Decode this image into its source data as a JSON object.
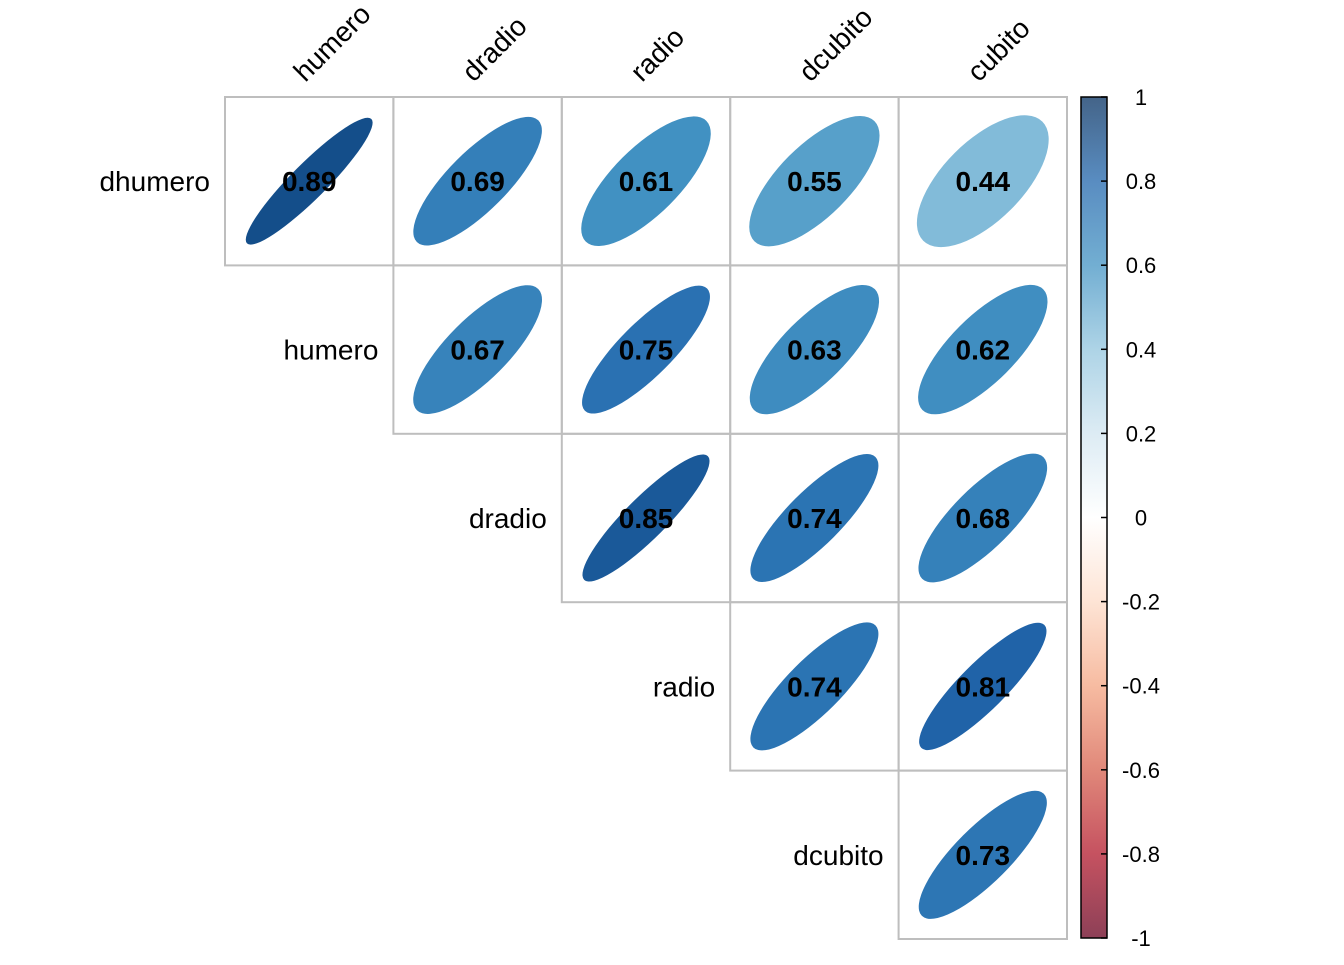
{
  "chart_data": {
    "type": "heatmap",
    "style": "correlation-ellipse-upper-triangle",
    "title": "",
    "column_labels": [
      "humero",
      "dradio",
      "radio",
      "dcubito",
      "cubito"
    ],
    "row_labels": [
      "dhumero",
      "humero",
      "dradio",
      "radio",
      "dcubito"
    ],
    "cells": [
      {
        "row": "dhumero",
        "col": "humero",
        "value": 0.89,
        "label": "0.89"
      },
      {
        "row": "dhumero",
        "col": "dradio",
        "value": 0.69,
        "label": "0.69"
      },
      {
        "row": "dhumero",
        "col": "radio",
        "value": 0.61,
        "label": "0.61"
      },
      {
        "row": "dhumero",
        "col": "dcubito",
        "value": 0.55,
        "label": "0.55"
      },
      {
        "row": "dhumero",
        "col": "cubito",
        "value": 0.44,
        "label": "0.44"
      },
      {
        "row": "humero",
        "col": "dradio",
        "value": 0.67,
        "label": "0.67"
      },
      {
        "row": "humero",
        "col": "radio",
        "value": 0.75,
        "label": "0.75"
      },
      {
        "row": "humero",
        "col": "dcubito",
        "value": 0.63,
        "label": "0.63"
      },
      {
        "row": "humero",
        "col": "cubito",
        "value": 0.62,
        "label": "0.62"
      },
      {
        "row": "dradio",
        "col": "radio",
        "value": 0.85,
        "label": "0.85"
      },
      {
        "row": "dradio",
        "col": "dcubito",
        "value": 0.74,
        "label": "0.74"
      },
      {
        "row": "dradio",
        "col": "cubito",
        "value": 0.68,
        "label": "0.68"
      },
      {
        "row": "radio",
        "col": "dcubito",
        "value": 0.74,
        "label": "0.74"
      },
      {
        "row": "radio",
        "col": "cubito",
        "value": 0.81,
        "label": "0.81"
      },
      {
        "row": "dcubito",
        "col": "cubito",
        "value": 0.73,
        "label": "0.73"
      }
    ],
    "colorbar": {
      "range": [
        -1,
        1
      ],
      "tick_values": [
        1,
        0.8,
        0.6,
        0.4,
        0.2,
        0,
        -0.2,
        -0.4,
        -0.6,
        -0.8,
        -1
      ],
      "tick_labels": [
        "1",
        "0.8",
        "0.6",
        "0.4",
        "0.2",
        "0",
        "-0.2",
        "-0.4",
        "-0.6",
        "-0.8",
        "-1"
      ],
      "colors_low_to_high": [
        "#67001F",
        "#B2182B",
        "#D6604D",
        "#F4A582",
        "#FDDBC7",
        "#FFFFFF",
        "#D1E5F0",
        "#92C5DE",
        "#4393C3",
        "#2166AC",
        "#053061"
      ]
    },
    "grid_color": "#BEBEBE",
    "label_color": "#000000"
  }
}
